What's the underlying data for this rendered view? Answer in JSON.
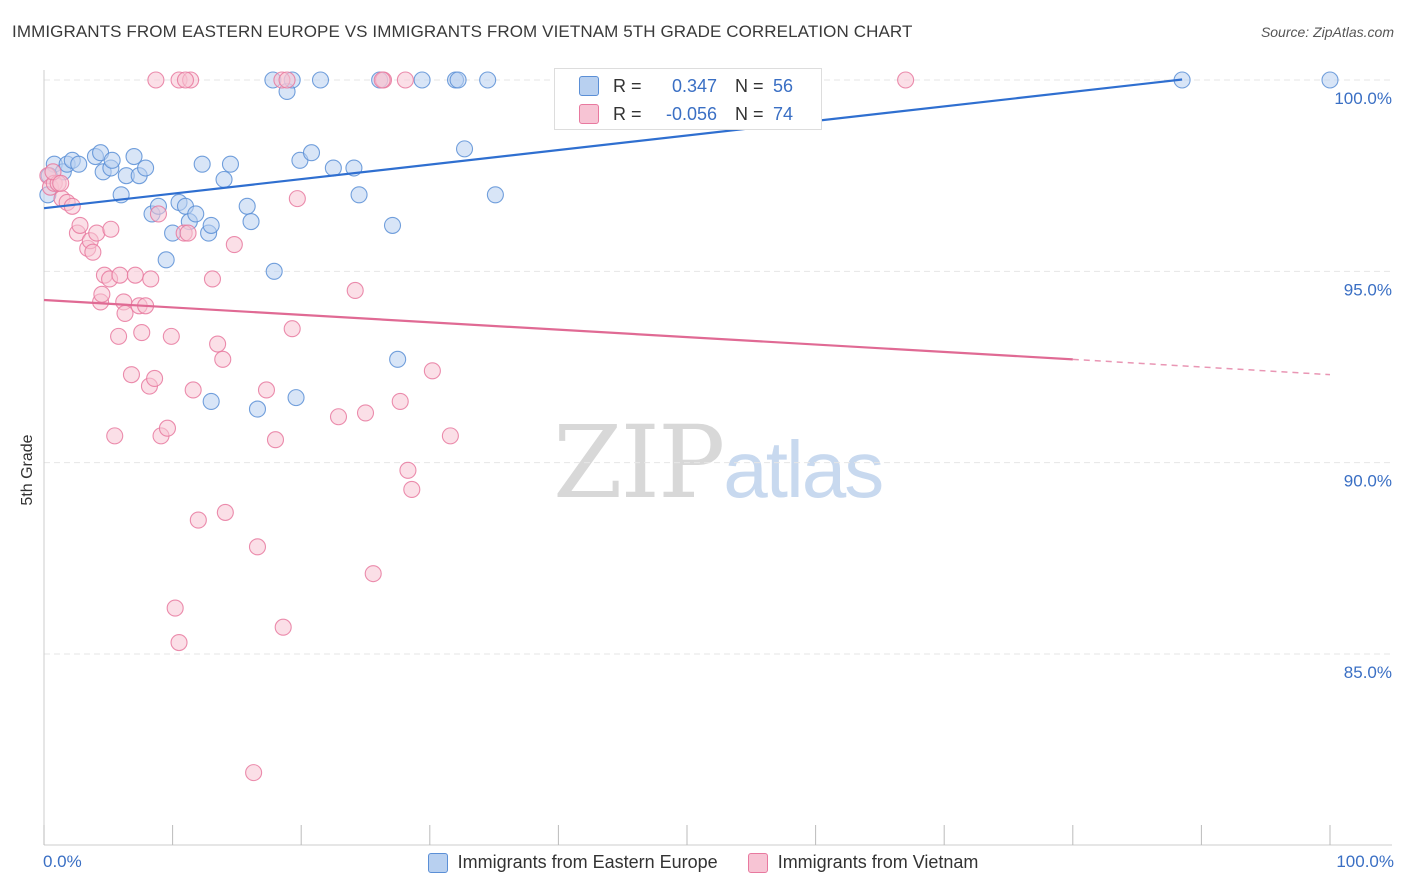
{
  "header": {
    "title": "IMMIGRANTS FROM EASTERN EUROPE VS IMMIGRANTS FROM VIETNAM 5TH GRADE CORRELATION CHART",
    "source": "Source: ZipAtlas.com"
  },
  "watermark": {
    "zip": "ZIP",
    "atlas": "atlas"
  },
  "stats": {
    "blue": {
      "r_label": "R =",
      "r_value": "0.347",
      "n_label": "N =",
      "n_value": "56"
    },
    "pink": {
      "r_label": "R =",
      "r_value": "-0.056",
      "n_label": "N =",
      "n_value": "74"
    }
  },
  "colors": {
    "blue": "#5b8fd6",
    "blue_fill": "#b8d0f0",
    "pink": "#e8799f",
    "pink_fill": "#f7c4d4",
    "axis_text": "#3a6fc4",
    "grid": "#e6e6e6"
  },
  "chart_data": {
    "type": "scatter",
    "title": "IMMIGRANTS FROM EASTERN EUROPE VS IMMIGRANTS FROM VIETNAM 5TH GRADE CORRELATION CHART",
    "xlabel": "",
    "ylabel": "5th Grade",
    "xlim": [
      0,
      100
    ],
    "ylim": [
      80.0,
      100.5
    ],
    "x_tick_labels": [
      "0.0%",
      "100.0%"
    ],
    "y_ticks": [
      {
        "value": 100.0,
        "label": "100.0%"
      },
      {
        "value": 95.0,
        "label": "95.0%"
      },
      {
        "value": 90.0,
        "label": "90.0%"
      },
      {
        "value": 85.0,
        "label": "85.0%"
      }
    ],
    "grid": true,
    "legend_position": "bottom",
    "series": [
      {
        "name": "Immigrants from Eastern Europe",
        "color": "#5b8fd6",
        "trend": {
          "x": [
            0,
            100
          ],
          "y": [
            96.65,
            100.45
          ],
          "dashed_from": null
        },
        "points": [
          [
            0.8,
            97.8
          ],
          [
            1.5,
            97.6
          ],
          [
            1.8,
            97.8
          ],
          [
            2.2,
            97.9
          ],
          [
            2.7,
            97.8
          ],
          [
            4.0,
            98.0
          ],
          [
            4.4,
            98.1
          ],
          [
            4.6,
            97.6
          ],
          [
            5.2,
            97.7
          ],
          [
            5.3,
            97.9
          ],
          [
            6.0,
            97.0
          ],
          [
            6.4,
            97.5
          ],
          [
            7.0,
            98.0
          ],
          [
            7.4,
            97.5
          ],
          [
            7.9,
            97.7
          ],
          [
            8.4,
            96.5
          ],
          [
            8.9,
            96.7
          ],
          [
            9.5,
            95.3
          ],
          [
            10.0,
            96.0
          ],
          [
            10.5,
            96.8
          ],
          [
            11.0,
            96.7
          ],
          [
            11.3,
            96.3
          ],
          [
            11.8,
            96.5
          ],
          [
            12.8,
            96.0
          ],
          [
            13.0,
            96.2
          ],
          [
            12.3,
            97.8
          ],
          [
            14.0,
            97.4
          ],
          [
            14.5,
            97.8
          ],
          [
            15.8,
            96.7
          ],
          [
            16.1,
            96.3
          ],
          [
            17.9,
            95.0
          ],
          [
            17.8,
            100.0
          ],
          [
            18.9,
            99.7
          ],
          [
            19.3,
            100.0
          ],
          [
            19.9,
            97.9
          ],
          [
            20.8,
            98.1
          ],
          [
            21.5,
            100.0
          ],
          [
            22.5,
            97.7
          ],
          [
            24.1,
            97.7
          ],
          [
            24.5,
            97.0
          ],
          [
            26.1,
            100.0
          ],
          [
            27.1,
            96.2
          ],
          [
            27.5,
            92.7
          ],
          [
            29.4,
            100.0
          ],
          [
            32.0,
            100.0
          ],
          [
            32.2,
            100.0
          ],
          [
            32.7,
            98.2
          ],
          [
            34.5,
            100.0
          ],
          [
            35.1,
            97.0
          ],
          [
            13.0,
            91.6
          ],
          [
            16.6,
            91.4
          ],
          [
            19.6,
            91.7
          ],
          [
            0.4,
            97.5
          ],
          [
            0.3,
            97.0
          ],
          [
            88.5,
            100.0
          ],
          [
            100.0,
            100.0
          ]
        ]
      },
      {
        "name": "Immigrants from Vietnam",
        "color": "#e8799f",
        "trend": {
          "x": [
            0,
            80
          ],
          "y": [
            94.25,
            92.7
          ],
          "dashed_from": 80,
          "x_end": 100,
          "y_end": 92.3
        },
        "points": [
          [
            0.3,
            97.5
          ],
          [
            0.5,
            97.2
          ],
          [
            0.8,
            97.3
          ],
          [
            1.1,
            97.3
          ],
          [
            1.4,
            96.9
          ],
          [
            1.8,
            96.8
          ],
          [
            2.2,
            96.7
          ],
          [
            2.6,
            96.0
          ],
          [
            2.8,
            96.2
          ],
          [
            3.4,
            95.6
          ],
          [
            3.6,
            95.8
          ],
          [
            3.8,
            95.5
          ],
          [
            4.1,
            96.0
          ],
          [
            4.4,
            94.2
          ],
          [
            4.5,
            94.4
          ],
          [
            4.7,
            94.9
          ],
          [
            5.1,
            94.8
          ],
          [
            5.2,
            96.1
          ],
          [
            5.5,
            90.7
          ],
          [
            5.8,
            93.3
          ],
          [
            5.9,
            94.9
          ],
          [
            6.2,
            94.2
          ],
          [
            6.3,
            93.9
          ],
          [
            6.8,
            92.3
          ],
          [
            7.1,
            94.9
          ],
          [
            7.4,
            94.1
          ],
          [
            7.6,
            93.4
          ],
          [
            7.9,
            94.1
          ],
          [
            8.2,
            92.0
          ],
          [
            8.3,
            94.8
          ],
          [
            8.6,
            92.2
          ],
          [
            8.9,
            96.5
          ],
          [
            9.1,
            90.7
          ],
          [
            9.6,
            90.9
          ],
          [
            9.9,
            93.3
          ],
          [
            10.2,
            86.2
          ],
          [
            10.5,
            85.3
          ],
          [
            10.9,
            96.0
          ],
          [
            11.2,
            96.0
          ],
          [
            11.6,
            91.9
          ],
          [
            12.0,
            88.5
          ],
          [
            13.1,
            94.8
          ],
          [
            13.5,
            93.1
          ],
          [
            13.9,
            92.7
          ],
          [
            14.1,
            88.7
          ],
          [
            14.8,
            95.7
          ],
          [
            16.3,
            81.9
          ],
          [
            16.6,
            87.8
          ],
          [
            17.3,
            91.9
          ],
          [
            18.0,
            90.6
          ],
          [
            18.5,
            100.0
          ],
          [
            18.6,
            85.7
          ],
          [
            19.3,
            93.5
          ],
          [
            19.7,
            96.9
          ],
          [
            22.9,
            91.2
          ],
          [
            24.2,
            94.5
          ],
          [
            25.0,
            91.3
          ],
          [
            25.6,
            87.1
          ],
          [
            26.4,
            100.0
          ],
          [
            27.7,
            91.6
          ],
          [
            28.3,
            89.8
          ],
          [
            28.6,
            89.3
          ],
          [
            30.2,
            92.4
          ],
          [
            31.6,
            90.7
          ],
          [
            8.7,
            100.0
          ],
          [
            10.5,
            100.0
          ],
          [
            11.4,
            100.0
          ],
          [
            11.0,
            100.0
          ],
          [
            18.9,
            100.0
          ],
          [
            26.3,
            100.0
          ],
          [
            28.1,
            100.0
          ],
          [
            67.0,
            100.0
          ],
          [
            0.7,
            97.6
          ],
          [
            1.3,
            97.3
          ]
        ]
      }
    ]
  }
}
